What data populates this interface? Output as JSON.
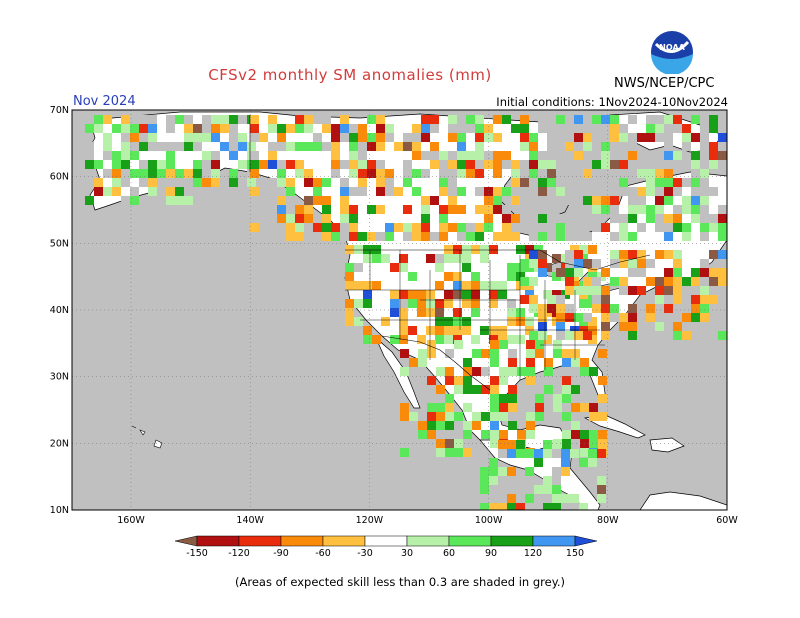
{
  "header": {
    "title": "CFSv2 monthly SM anomalies (mm)",
    "month": "Nov 2024",
    "initial_conditions": "Initial conditions: 1Nov2024-10Nov2024",
    "agency": "NWS/NCEP/CPC",
    "logo_text": "NOAA"
  },
  "map": {
    "region": "North America",
    "lat_labels": [
      "70N",
      "60N",
      "50N",
      "40N",
      "30N",
      "20N",
      "10N"
    ],
    "lon_labels": [
      "160W",
      "140W",
      "120W",
      "100W",
      "80W",
      "60W"
    ],
    "colors": {
      "ocean": "#c0c0c0",
      "land": "#ffffff",
      "low_skill": "#c0c0c0"
    }
  },
  "legend": {
    "labels": [
      "-150",
      "-120",
      "-90",
      "-60",
      "-30",
      "30",
      "60",
      "90",
      "120",
      "150"
    ],
    "colors": [
      "#8a5a44",
      "#b01010",
      "#e82c0c",
      "#fa8a0a",
      "#ffbf3f",
      "#ffffff",
      "#b7f0a8",
      "#5ae75a",
      "#18a018",
      "#4096f0",
      "#1f4fd8"
    ]
  },
  "footnote": "(Areas of expected skill less than 0.3 are shaded in grey.)"
}
